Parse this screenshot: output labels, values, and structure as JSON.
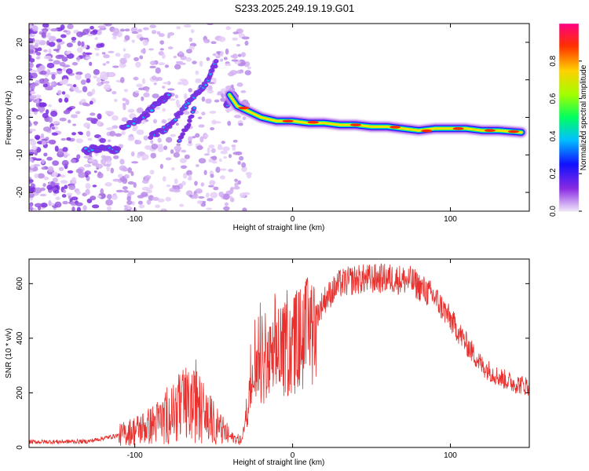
{
  "title": "S233.2025.249.19.19.G01",
  "chart_data": [
    {
      "type": "heatmap",
      "xlabel": "Height of straight line (km)",
      "ylabel": "Frequency (Hz)",
      "xlim": [
        -167,
        150
      ],
      "ylim": [
        -25,
        25
      ],
      "xticks": [
        -100,
        0,
        100
      ],
      "yticks": [
        -20,
        -10,
        0,
        10,
        20
      ],
      "colorbar": {
        "label": "Normalized spectral amplitude",
        "range": [
          0,
          1
        ],
        "ticks": [
          "0.0",
          "0.2",
          "0.4",
          "0.6",
          "0.8"
        ]
      },
      "ridge": [
        {
          "x": -40,
          "y": 6
        },
        {
          "x": -35,
          "y": 3
        },
        {
          "x": -30,
          "y": 2
        },
        {
          "x": -20,
          "y": 0
        },
        {
          "x": -10,
          "y": -1
        },
        {
          "x": 0,
          "y": -1
        },
        {
          "x": 10,
          "y": -1.5
        },
        {
          "x": 20,
          "y": -1.5
        },
        {
          "x": 30,
          "y": -2
        },
        {
          "x": 40,
          "y": -2
        },
        {
          "x": 50,
          "y": -2.5
        },
        {
          "x": 60,
          "y": -2.5
        },
        {
          "x": 70,
          "y": -3
        },
        {
          "x": 80,
          "y": -3.5
        },
        {
          "x": 90,
          "y": -3
        },
        {
          "x": 100,
          "y": -3
        },
        {
          "x": 110,
          "y": -3
        },
        {
          "x": 120,
          "y": -3.5
        },
        {
          "x": 130,
          "y": -3.5
        },
        {
          "x": 145,
          "y": -4
        }
      ]
    },
    {
      "type": "line",
      "xlabel": "Height of straight line (km)",
      "ylabel": "SNR (10 * v/v)",
      "xlim": [
        -167,
        150
      ],
      "ylim": [
        0,
        690
      ],
      "xticks": [
        -100,
        0,
        100
      ],
      "yticks": [
        0,
        200,
        400,
        600
      ],
      "series_color": "#e8312e",
      "envelope": [
        {
          "x": -167,
          "y": 20
        },
        {
          "x": -130,
          "y": 22
        },
        {
          "x": -110,
          "y": 45
        },
        {
          "x": -90,
          "y": 80
        },
        {
          "x": -80,
          "y": 110
        },
        {
          "x": -70,
          "y": 150
        },
        {
          "x": -60,
          "y": 150
        },
        {
          "x": -50,
          "y": 90
        },
        {
          "x": -40,
          "y": 40
        },
        {
          "x": -32,
          "y": 25
        },
        {
          "x": -28,
          "y": 180
        },
        {
          "x": -20,
          "y": 280
        },
        {
          "x": -10,
          "y": 330
        },
        {
          "x": 0,
          "y": 380
        },
        {
          "x": 10,
          "y": 420
        },
        {
          "x": 20,
          "y": 540
        },
        {
          "x": 30,
          "y": 600
        },
        {
          "x": 40,
          "y": 615
        },
        {
          "x": 60,
          "y": 620
        },
        {
          "x": 75,
          "y": 610
        },
        {
          "x": 90,
          "y": 550
        },
        {
          "x": 100,
          "y": 470
        },
        {
          "x": 110,
          "y": 380
        },
        {
          "x": 120,
          "y": 300
        },
        {
          "x": 130,
          "y": 260
        },
        {
          "x": 140,
          "y": 235
        },
        {
          "x": 150,
          "y": 225
        }
      ]
    }
  ]
}
